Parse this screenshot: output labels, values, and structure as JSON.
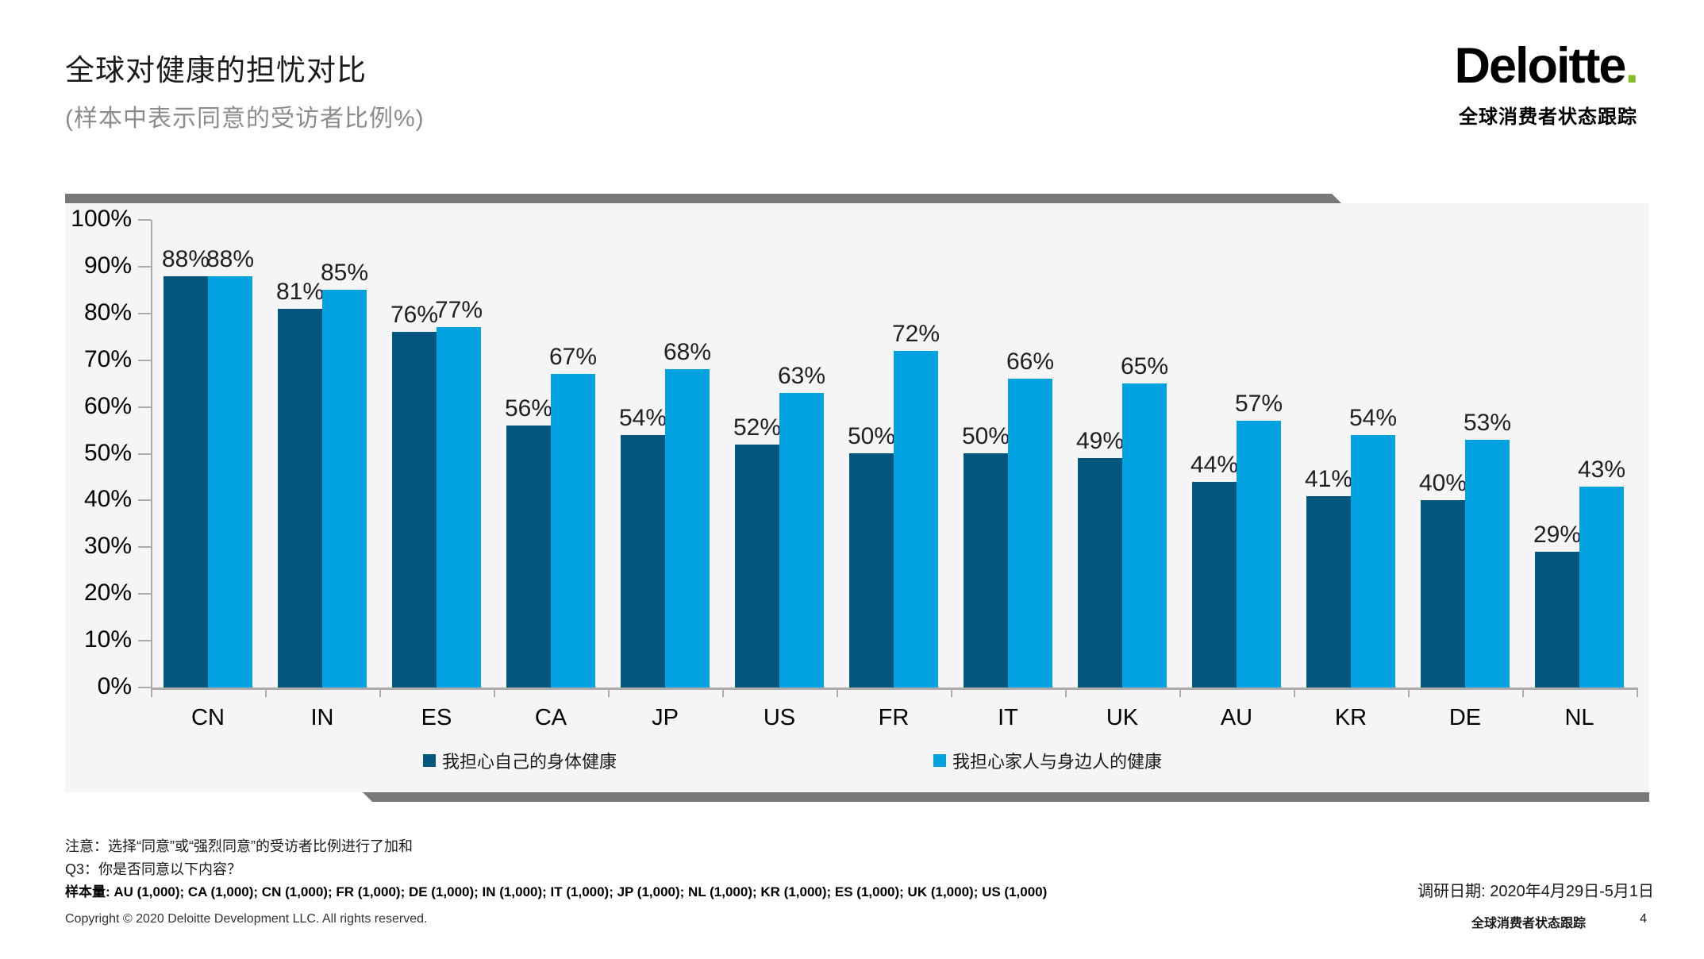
{
  "header": {
    "title": "全球对健康的担忧对比",
    "subtitle": "(样本中表示同意的受访者比例%)",
    "logo_text": "Deloitte",
    "logo_dot": ".",
    "brand_caption": "全球消费者状态跟踪"
  },
  "chart_data": {
    "type": "bar",
    "title": "全球对健康的担忧对比",
    "subtitle": "(样本中表示同意的受访者比例%)",
    "categories": [
      "CN",
      "IN",
      "ES",
      "CA",
      "JP",
      "US",
      "FR",
      "IT",
      "UK",
      "AU",
      "KR",
      "DE",
      "NL"
    ],
    "series": [
      {
        "name": "我担心自己的身体健康",
        "color": "#05567D",
        "values": [
          88,
          81,
          76,
          56,
          54,
          52,
          50,
          50,
          49,
          44,
          41,
          40,
          29
        ]
      },
      {
        "name": "我担心家人与身边人的健康",
        "color": "#00A3E0",
        "values": [
          88,
          85,
          77,
          67,
          68,
          63,
          72,
          66,
          65,
          57,
          54,
          53,
          43
        ]
      }
    ],
    "ylim": [
      0,
      100
    ],
    "ytick_step": 10,
    "value_suffix": "%",
    "grid": false,
    "legend_position": "bottom"
  },
  "footer": {
    "note": "注意：选择“同意”或“强烈同意”的受访者比例进行了加和",
    "question": "Q3：你是否同意以下内容？",
    "sample": "样本量: AU (1,000); CA (1,000); CN (1,000); FR (1,000); DE (1,000); IN (1,000); IT (1,000); JP (1,000); NL (1,000); KR (1,000); ES (1,000); UK (1,000); US (1,000)",
    "copyright": "Copyright © 2020 Deloitte Development LLC. All rights reserved.",
    "survey_date": "调研日期: 2020年4月29日-5月1日",
    "tracker": "全球消费者状态跟踪",
    "page_number": "4"
  }
}
